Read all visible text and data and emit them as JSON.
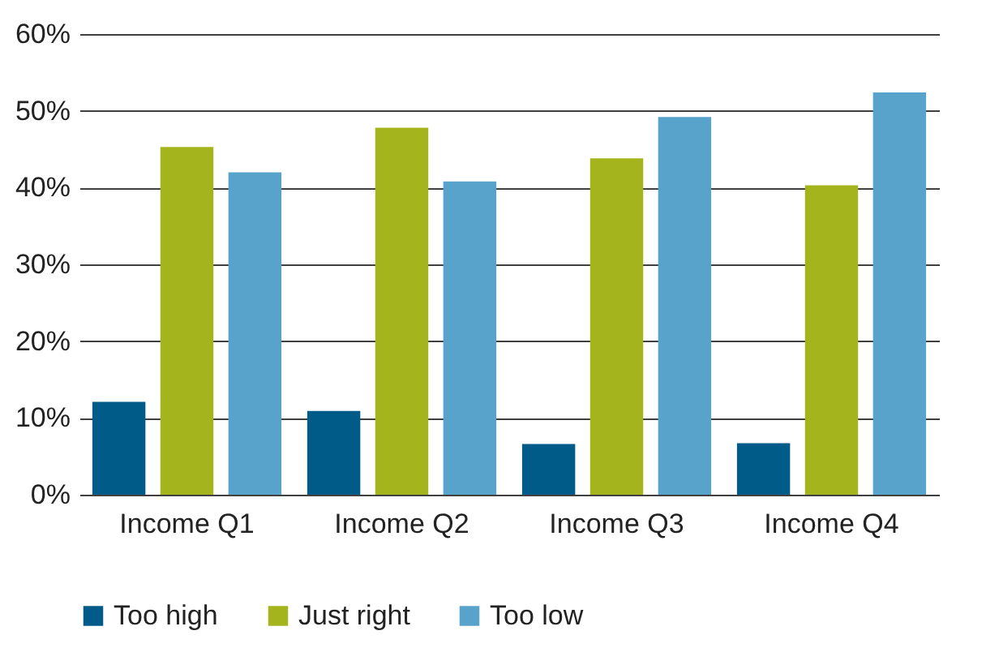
{
  "chart_data": {
    "type": "bar",
    "categories": [
      "Income Q1",
      "Income Q2",
      "Income Q3",
      "Income Q4"
    ],
    "series": [
      {
        "name": "Too high",
        "color": "#005b88",
        "values": [
          12.1,
          10.9,
          6.6,
          6.7
        ]
      },
      {
        "name": "Just right",
        "color": "#a3b41c",
        "values": [
          45.3,
          47.8,
          43.8,
          40.3
        ]
      },
      {
        "name": "Too low",
        "color": "#58a3cb",
        "values": [
          42.0,
          40.8,
          49.2,
          52.4
        ]
      }
    ],
    "ylim": [
      0,
      60
    ],
    "yticks": [
      {
        "value": 0,
        "label": "0%"
      },
      {
        "value": 10,
        "label": "10%"
      },
      {
        "value": 20,
        "label": "20%"
      },
      {
        "value": 30,
        "label": "30%"
      },
      {
        "value": 40,
        "label": "40%"
      },
      {
        "value": 50,
        "label": "50%"
      },
      {
        "value": 60,
        "label": "60%"
      }
    ],
    "grid": "y",
    "legend": "bottom"
  }
}
